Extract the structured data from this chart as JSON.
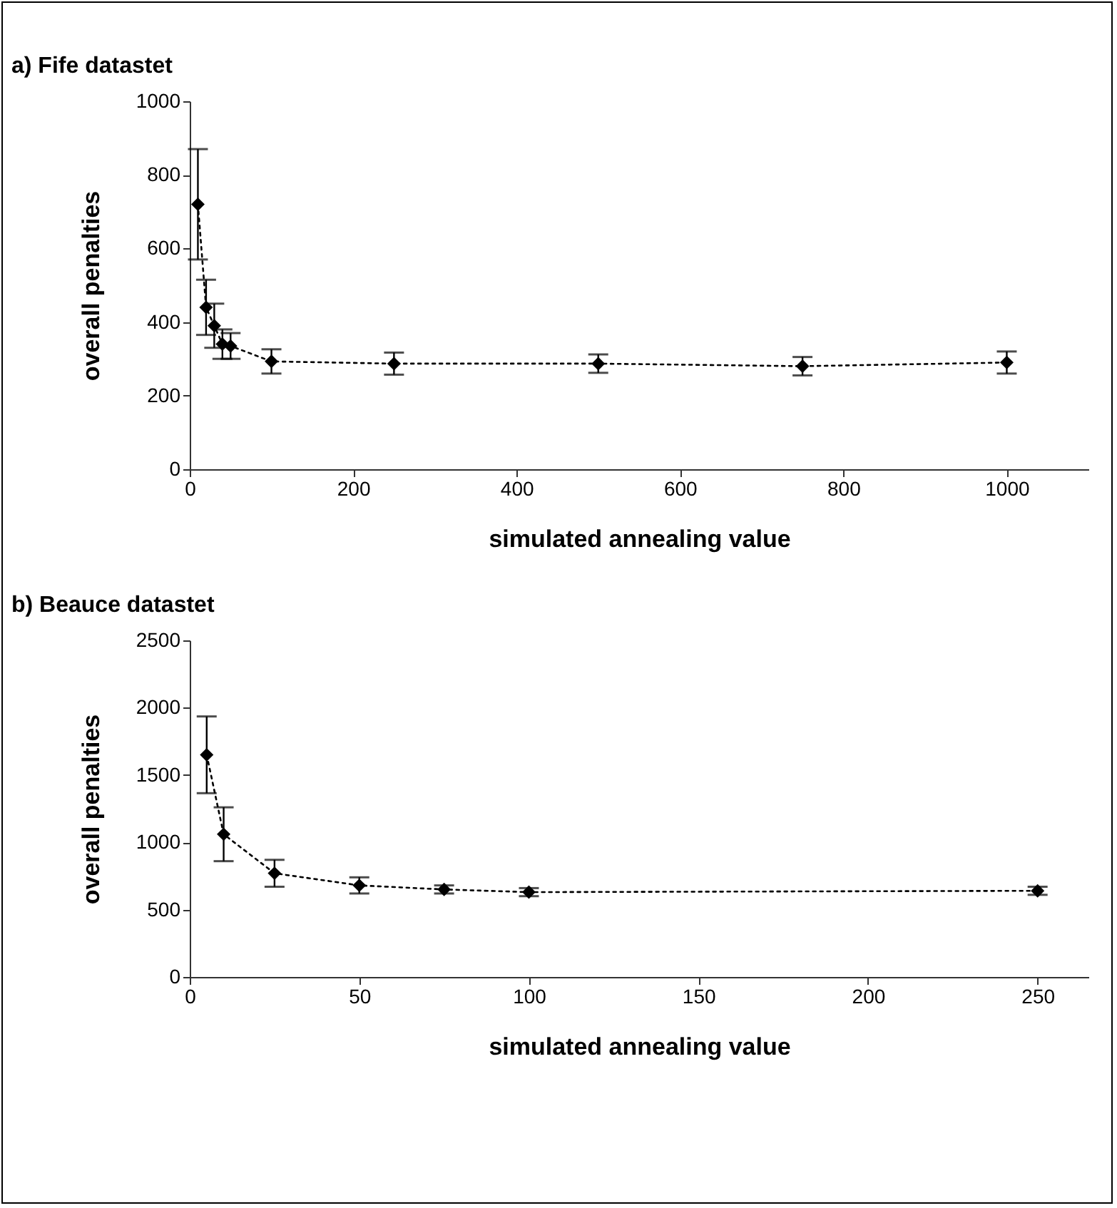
{
  "chart_data": [
    {
      "type": "line",
      "title": "a) Fife datastet",
      "xlabel": "simulated annealing value",
      "ylabel": "overall penalties",
      "marker": "diamond",
      "line_style": "dotted",
      "x": [
        10,
        20,
        30,
        40,
        50,
        100,
        250,
        500,
        750,
        1000
      ],
      "series": [
        {
          "color": "#000000",
          "values": [
            720,
            440,
            390,
            340,
            335,
            293,
            287,
            287,
            280,
            290
          ],
          "errors": [
            150,
            75,
            60,
            40,
            35,
            33,
            30,
            25,
            25,
            30
          ]
        }
      ],
      "xlim": [
        0,
        1100
      ],
      "xticks": [
        0,
        200,
        400,
        600,
        800,
        1000
      ],
      "ylim": [
        0,
        1000
      ],
      "yticks": [
        0,
        200,
        400,
        600,
        800,
        1000
      ]
    },
    {
      "type": "line",
      "title": "b) Beauce datastet",
      "xlabel": "simulated annealing value",
      "ylabel": "overall penalties",
      "marker": "diamond",
      "line_style": "dotted",
      "x": [
        5,
        10,
        25,
        50,
        75,
        100,
        250
      ],
      "series": [
        {
          "color": "#000000",
          "values": [
            1650,
            1060,
            770,
            680,
            650,
            630,
            640
          ],
          "errors": [
            285,
            200,
            100,
            60,
            30,
            30,
            30
          ]
        }
      ],
      "xlim": [
        0,
        265
      ],
      "xticks": [
        0,
        50,
        100,
        150,
        200,
        250
      ],
      "ylim": [
        0,
        2500
      ],
      "yticks": [
        0,
        500,
        1000,
        1500,
        2000,
        2500
      ]
    }
  ]
}
